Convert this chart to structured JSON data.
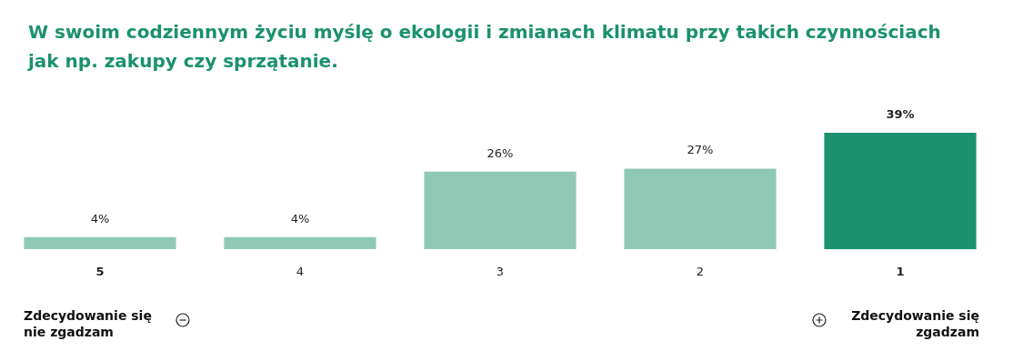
{
  "chart_data": {
    "type": "bar",
    "title": "W swoim codziennym życiu myślę o ekologii i zmianach klimatu przy takich czynnościach jak np. zakupy czy sprzątanie.",
    "categories": [
      "5",
      "4",
      "3",
      "2",
      "1"
    ],
    "values": [
      4,
      4,
      26,
      27,
      39
    ],
    "value_labels": [
      "4%",
      "4%",
      "26%",
      "27%",
      "39%"
    ],
    "colors": [
      "#8fc9b6",
      "#8fc9b6",
      "#8fc9b6",
      "#8fc9b6",
      "#1b916e"
    ],
    "annotations": [
      "Zdecydowanie się nie zgadzam",
      "Zdecydowanie się zgadzam"
    ]
  }
}
